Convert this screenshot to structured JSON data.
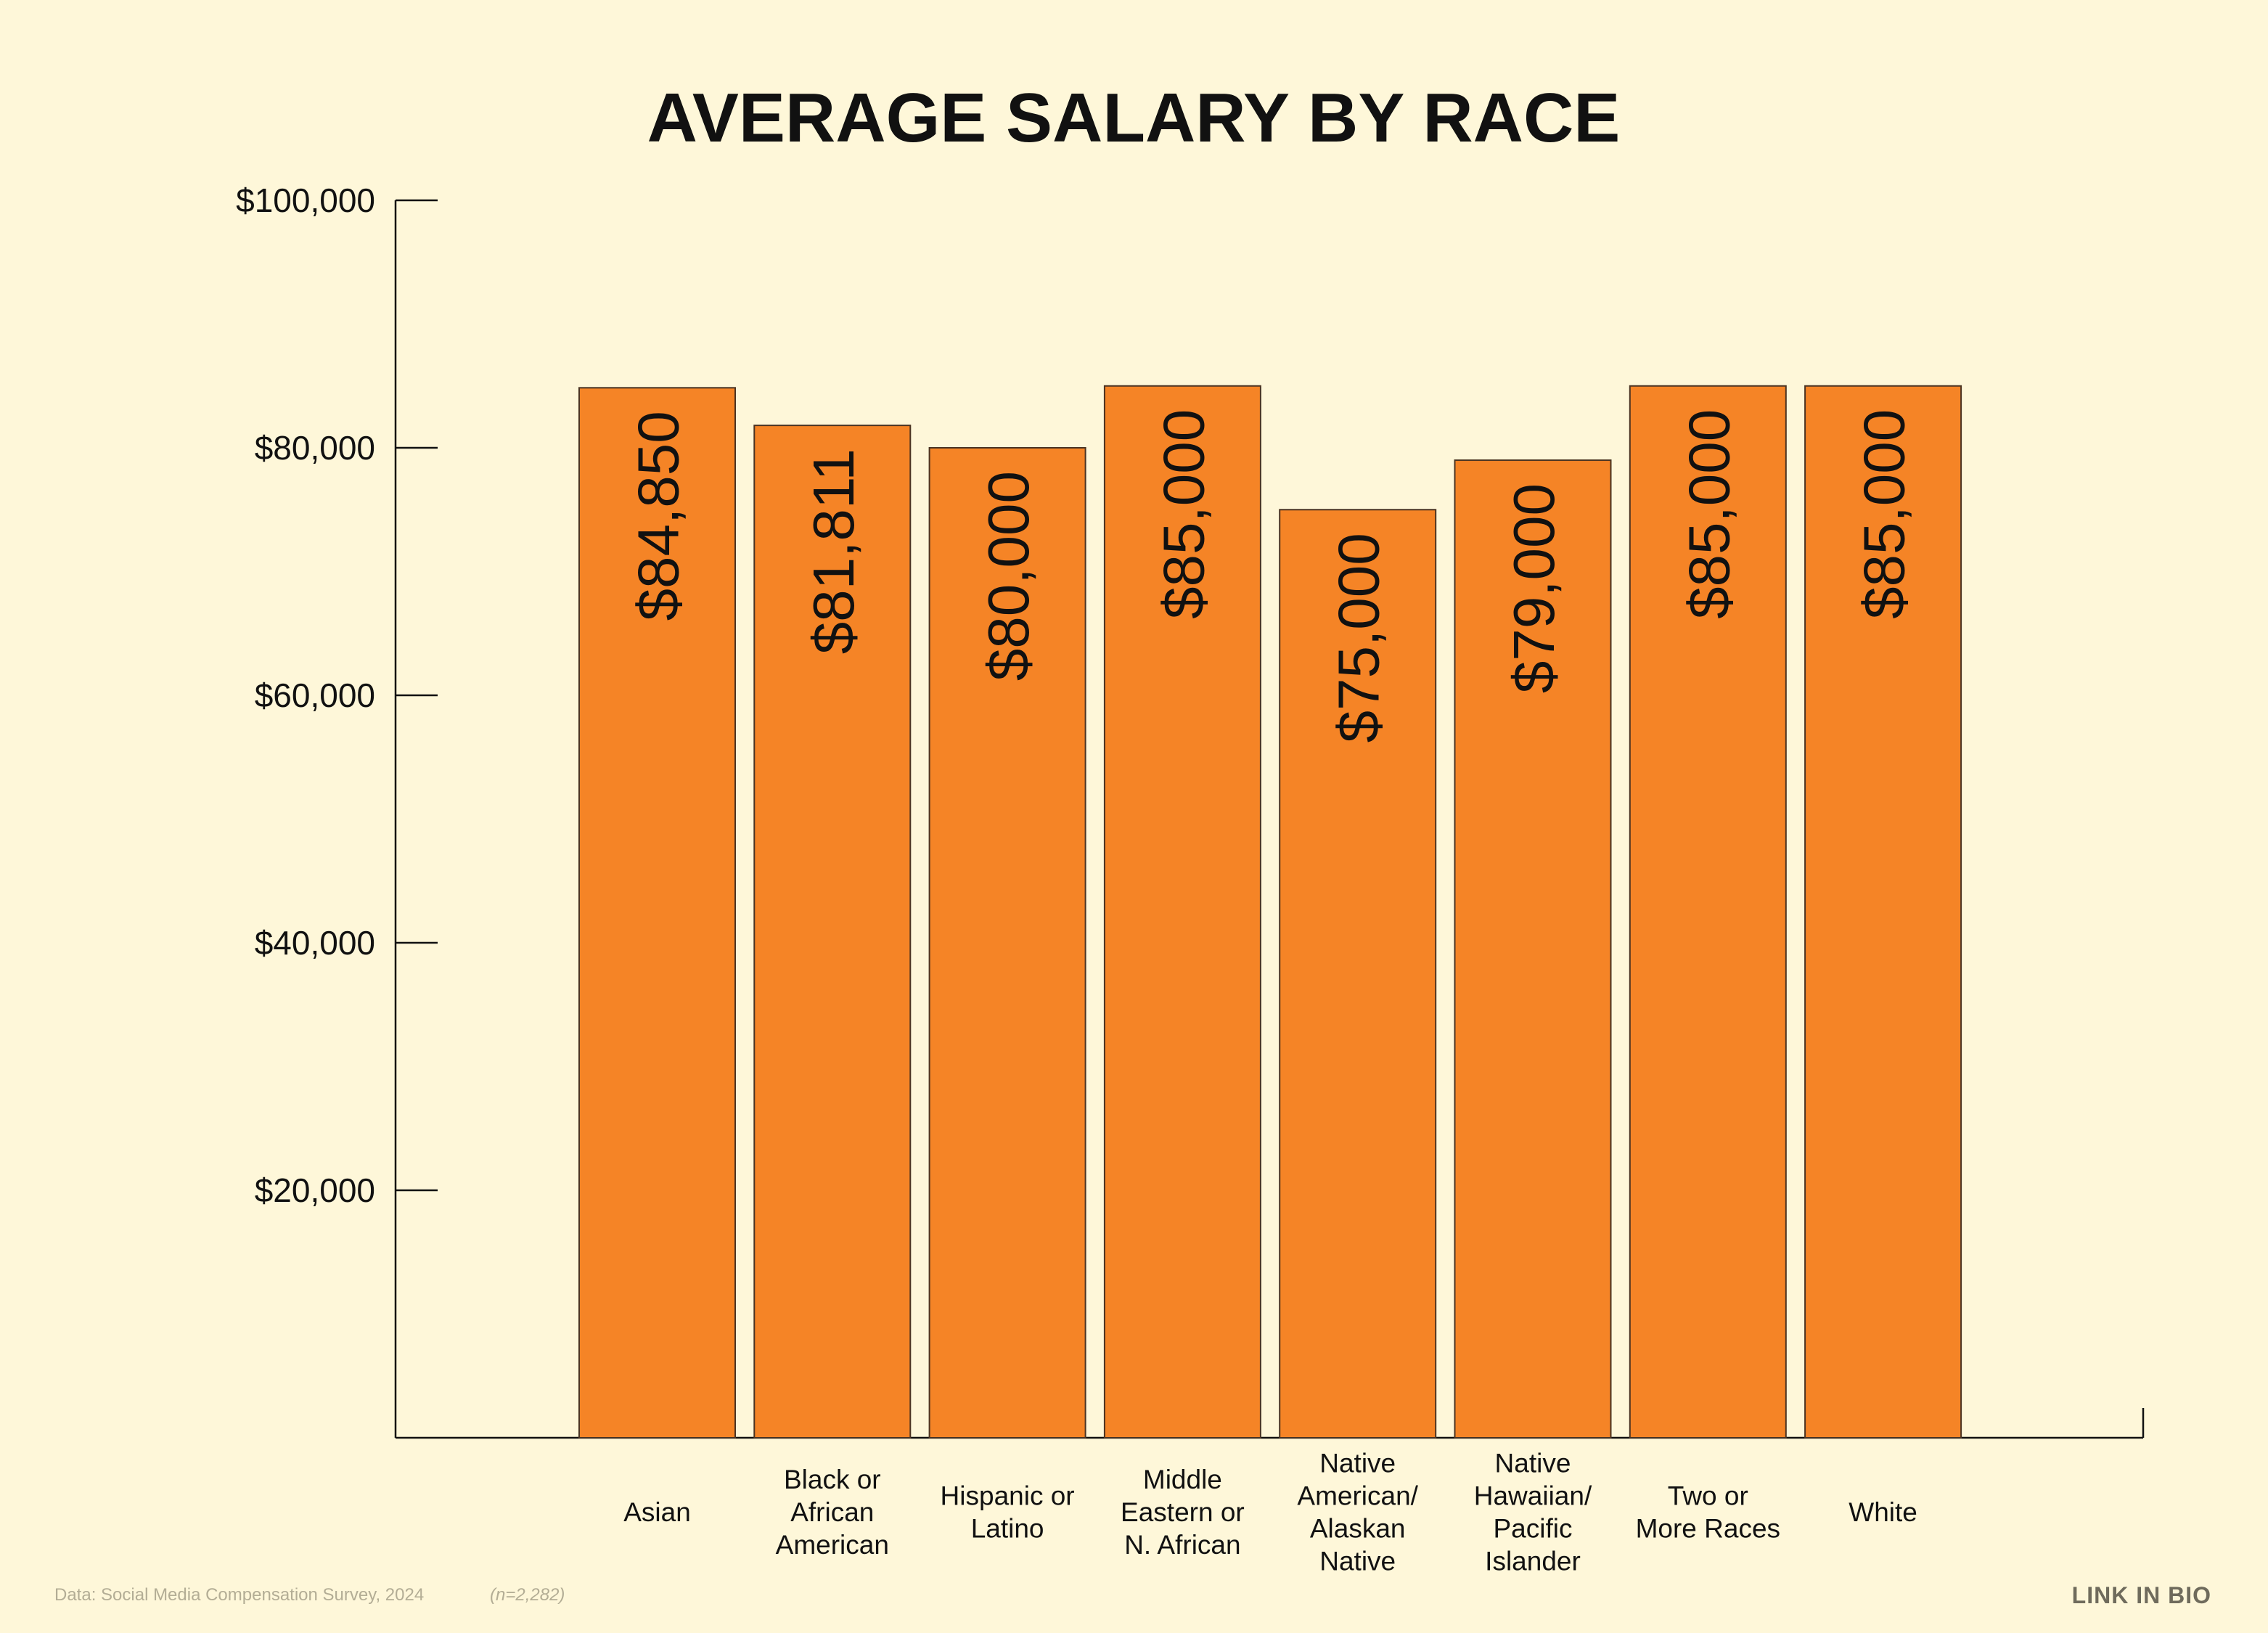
{
  "colors": {
    "background": "#fef7d9",
    "bar_fill": "#f58426",
    "bar_stroke": "#4a3322",
    "axis": "#111111",
    "text": "#111111",
    "footnote": "#b3ad95",
    "brand": "#6f6b5c"
  },
  "chart_data": {
    "type": "bar",
    "title": "AVERAGE SALARY BY RACE",
    "xlabel": "",
    "ylabel": "",
    "ylim": [
      0,
      100000
    ],
    "grid": false,
    "y_ticks": [
      {
        "value": 100000,
        "label": "$100,000"
      },
      {
        "value": 80000,
        "label": "$80,000"
      },
      {
        "value": 60000,
        "label": "$60,000"
      },
      {
        "value": 40000,
        "label": "$40,000"
      },
      {
        "value": 20000,
        "label": "$20,000"
      }
    ],
    "categories": [
      [
        "Asian"
      ],
      [
        "Black or",
        "African",
        "American"
      ],
      [
        "Hispanic or",
        "Latino"
      ],
      [
        "Middle",
        "Eastern or",
        "N. African"
      ],
      [
        "Native",
        "American/",
        "Alaskan",
        "Native"
      ],
      [
        "Native",
        "Hawaiian/",
        "Pacific",
        "Islander"
      ],
      [
        "Two or",
        "More Races"
      ],
      [
        "White"
      ]
    ],
    "values": [
      84850,
      81811,
      80000,
      85000,
      75000,
      79000,
      85000,
      85000
    ],
    "value_labels": [
      "$84,850",
      "$81,811",
      "$80,000",
      "$85,000",
      "$75,000",
      "$79,000",
      "$85,000",
      "$85,000"
    ]
  },
  "footer": {
    "source": "Data: Social Media Compensation Survey, 2024",
    "sample": "(n=2,282)",
    "brand": "LINK IN BIO"
  }
}
